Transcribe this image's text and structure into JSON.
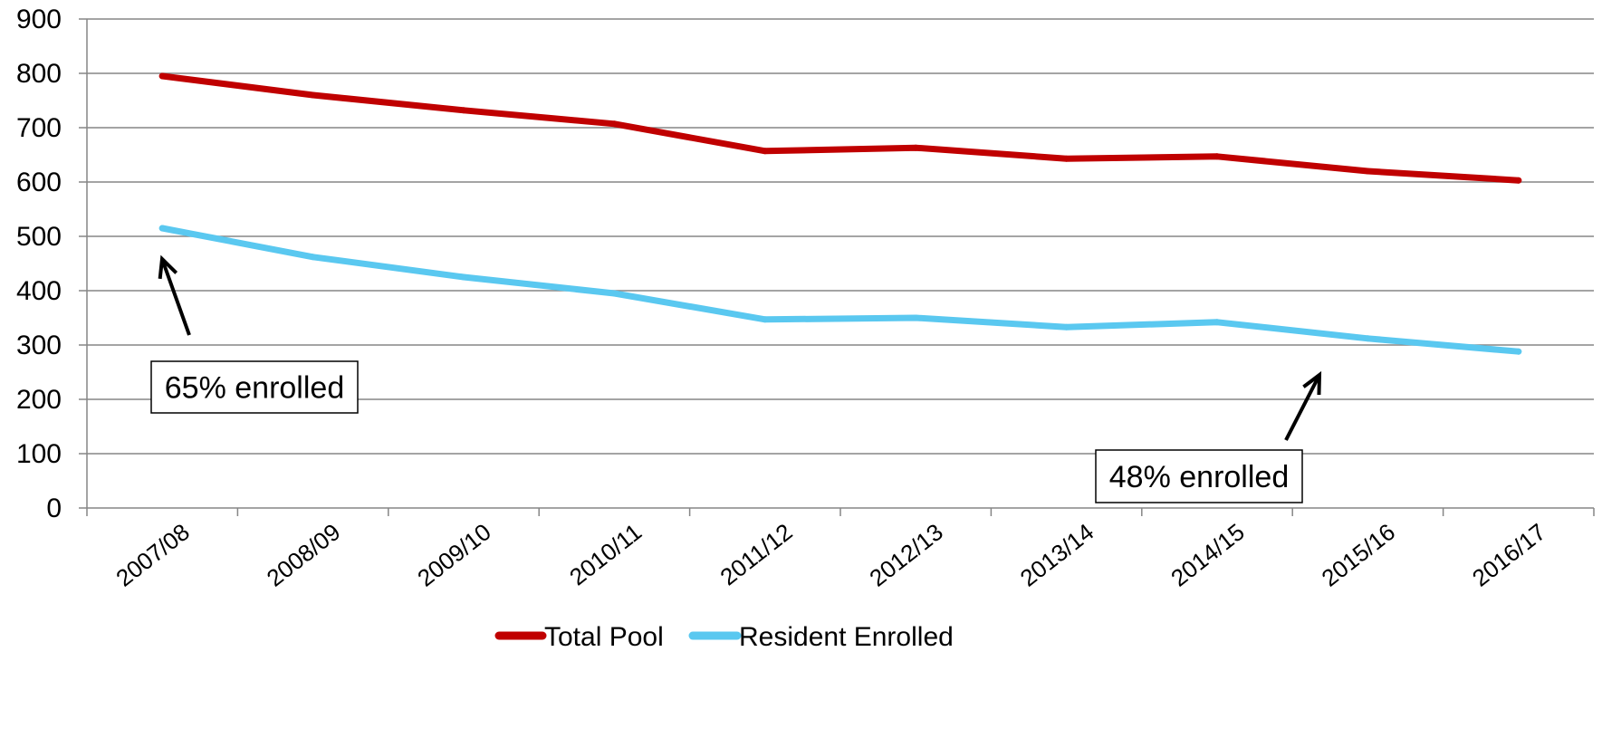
{
  "chart_data": {
    "type": "line",
    "categories": [
      "2007/08",
      "2008/09",
      "2009/10",
      "2010/11",
      "2011/12",
      "2012/13",
      "2013/14",
      "2014/15",
      "2015/16",
      "2016/17"
    ],
    "series": [
      {
        "name": "Total Pool",
        "color": "#c00000",
        "values": [
          795,
          760,
          732,
          707,
          657,
          663,
          643,
          647,
          620,
          603
        ]
      },
      {
        "name": "Resident Enrolled",
        "color": "#5ac8f0",
        "values": [
          515,
          462,
          425,
          395,
          347,
          350,
          333,
          342,
          312,
          288
        ]
      }
    ],
    "ylim": [
      0,
      900
    ],
    "yticks": [
      0,
      100,
      200,
      300,
      400,
      500,
      600,
      700,
      800,
      900
    ],
    "grid": true,
    "legend_position": "bottom",
    "annotations": [
      {
        "text": "65% enrolled",
        "category": "2007/08",
        "series": "Resident Enrolled"
      },
      {
        "text": "48% enrolled",
        "category": "2016/17",
        "series": "Resident Enrolled"
      }
    ]
  }
}
